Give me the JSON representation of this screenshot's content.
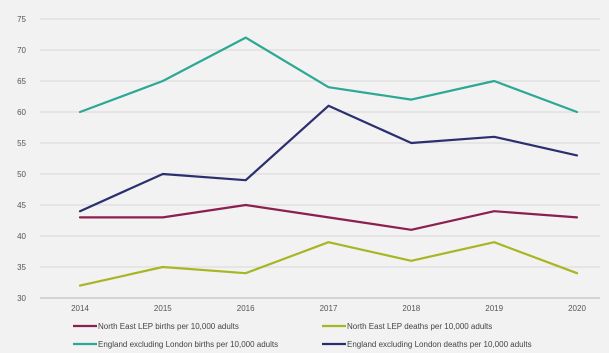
{
  "chart_data": {
    "type": "line",
    "title": "",
    "xlabel": "",
    "ylabel": "",
    "categories": [
      "2014",
      "2015",
      "2016",
      "2017",
      "2018",
      "2019",
      "2020"
    ],
    "ylim": [
      30,
      75
    ],
    "yticks": [
      "30",
      "35",
      "40",
      "45",
      "50",
      "55",
      "60",
      "65",
      "70",
      "75"
    ],
    "grid": "horizontal",
    "legend_position": "bottom",
    "series": [
      {
        "name": "North East LEP births per 10,000 adults",
        "color": "#8c1f4d",
        "values": [
          43,
          43,
          45,
          43,
          41,
          44,
          43
        ]
      },
      {
        "name": "North East LEP deaths per 10,000 adults",
        "color": "#a7b623",
        "values": [
          32,
          35,
          34,
          39,
          36,
          39,
          34
        ]
      },
      {
        "name": "England excluding London births per 10,000 adults",
        "color": "#2ca894",
        "values": [
          60,
          65,
          72,
          64,
          62,
          65,
          60
        ]
      },
      {
        "name": "England excluding London deaths per 10,000 adults",
        "color": "#2b2f6e",
        "values": [
          44,
          50,
          49,
          61,
          55,
          56,
          53
        ]
      }
    ]
  }
}
